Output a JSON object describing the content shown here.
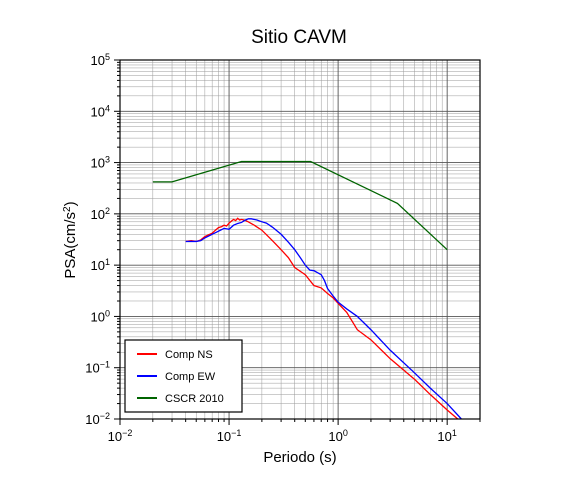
{
  "chart_data": {
    "type": "line",
    "title": "Sitio CAVM",
    "xlabel": "Periodo (s)",
    "ylabel_main": "PSA(cm/s",
    "ylabel_sup": "2",
    "ylabel_close": ")",
    "x_scale": "log",
    "y_scale": "log",
    "xlim": [
      0.01,
      20
    ],
    "ylim": [
      0.01,
      100000
    ],
    "grid": true,
    "legend_position": "bottom-left",
    "x_ticks": [
      {
        "base": "10",
        "exp": "−2"
      },
      {
        "base": "10",
        "exp": "−1"
      },
      {
        "base": "10",
        "exp": "0"
      },
      {
        "base": "10",
        "exp": "1"
      }
    ],
    "y_ticks": [
      {
        "base": "10",
        "exp": "−2"
      },
      {
        "base": "10",
        "exp": "−1"
      },
      {
        "base": "10",
        "exp": "0"
      },
      {
        "base": "10",
        "exp": "1"
      },
      {
        "base": "10",
        "exp": "2"
      },
      {
        "base": "10",
        "exp": "3"
      },
      {
        "base": "10",
        "exp": "4"
      },
      {
        "base": "10",
        "exp": "5"
      }
    ],
    "series": [
      {
        "name": "Comp NS",
        "color": "#ff0000",
        "points": [
          [
            0.04,
            29
          ],
          [
            0.045,
            30
          ],
          [
            0.05,
            29
          ],
          [
            0.055,
            31
          ],
          [
            0.06,
            36
          ],
          [
            0.065,
            39
          ],
          [
            0.07,
            42
          ],
          [
            0.075,
            48
          ],
          [
            0.08,
            54
          ],
          [
            0.085,
            56
          ],
          [
            0.09,
            60
          ],
          [
            0.095,
            58
          ],
          [
            0.1,
            66
          ],
          [
            0.105,
            72
          ],
          [
            0.11,
            78
          ],
          [
            0.115,
            74
          ],
          [
            0.12,
            82
          ],
          [
            0.125,
            76
          ],
          [
            0.13,
            78
          ],
          [
            0.14,
            75
          ],
          [
            0.15,
            70
          ],
          [
            0.17,
            60
          ],
          [
            0.2,
            48
          ],
          [
            0.25,
            30
          ],
          [
            0.3,
            20
          ],
          [
            0.35,
            14
          ],
          [
            0.4,
            9
          ],
          [
            0.5,
            6.5
          ],
          [
            0.6,
            4
          ],
          [
            0.7,
            3.6
          ],
          [
            0.8,
            2.8
          ],
          [
            0.9,
            2.3
          ],
          [
            1.0,
            1.8
          ],
          [
            1.2,
            1.2
          ],
          [
            1.5,
            0.55
          ],
          [
            2.0,
            0.35
          ],
          [
            3.0,
            0.15
          ],
          [
            5.0,
            0.06
          ],
          [
            7.0,
            0.03
          ],
          [
            10.0,
            0.015
          ],
          [
            12.5,
            0.01
          ]
        ]
      },
      {
        "name": "Comp EW",
        "color": "#0000ff",
        "points": [
          [
            0.04,
            29
          ],
          [
            0.045,
            29
          ],
          [
            0.05,
            29
          ],
          [
            0.055,
            30
          ],
          [
            0.06,
            34
          ],
          [
            0.07,
            40
          ],
          [
            0.08,
            46
          ],
          [
            0.09,
            52
          ],
          [
            0.1,
            50
          ],
          [
            0.11,
            60
          ],
          [
            0.12,
            65
          ],
          [
            0.13,
            68
          ],
          [
            0.14,
            75
          ],
          [
            0.15,
            80
          ],
          [
            0.16,
            80
          ],
          [
            0.18,
            76
          ],
          [
            0.2,
            70
          ],
          [
            0.22,
            66
          ],
          [
            0.25,
            55
          ],
          [
            0.3,
            40
          ],
          [
            0.35,
            28
          ],
          [
            0.4,
            20
          ],
          [
            0.45,
            14
          ],
          [
            0.5,
            10
          ],
          [
            0.55,
            8
          ],
          [
            0.6,
            7.8
          ],
          [
            0.7,
            6.5
          ],
          [
            0.75,
            5
          ],
          [
            0.8,
            3.5
          ],
          [
            0.9,
            2.5
          ],
          [
            1.0,
            1.9
          ],
          [
            1.2,
            1.4
          ],
          [
            1.5,
            1.0
          ],
          [
            2.0,
            0.55
          ],
          [
            3.0,
            0.22
          ],
          [
            5.0,
            0.08
          ],
          [
            7.0,
            0.04
          ],
          [
            10.0,
            0.02
          ],
          [
            13.5,
            0.01
          ]
        ]
      },
      {
        "name": "CSCR 2010",
        "color": "#006400",
        "points": [
          [
            0.02,
            420
          ],
          [
            0.03,
            420
          ],
          [
            0.13,
            1050
          ],
          [
            0.56,
            1050
          ],
          [
            3.5,
            160
          ],
          [
            10.0,
            20
          ]
        ]
      }
    ]
  }
}
